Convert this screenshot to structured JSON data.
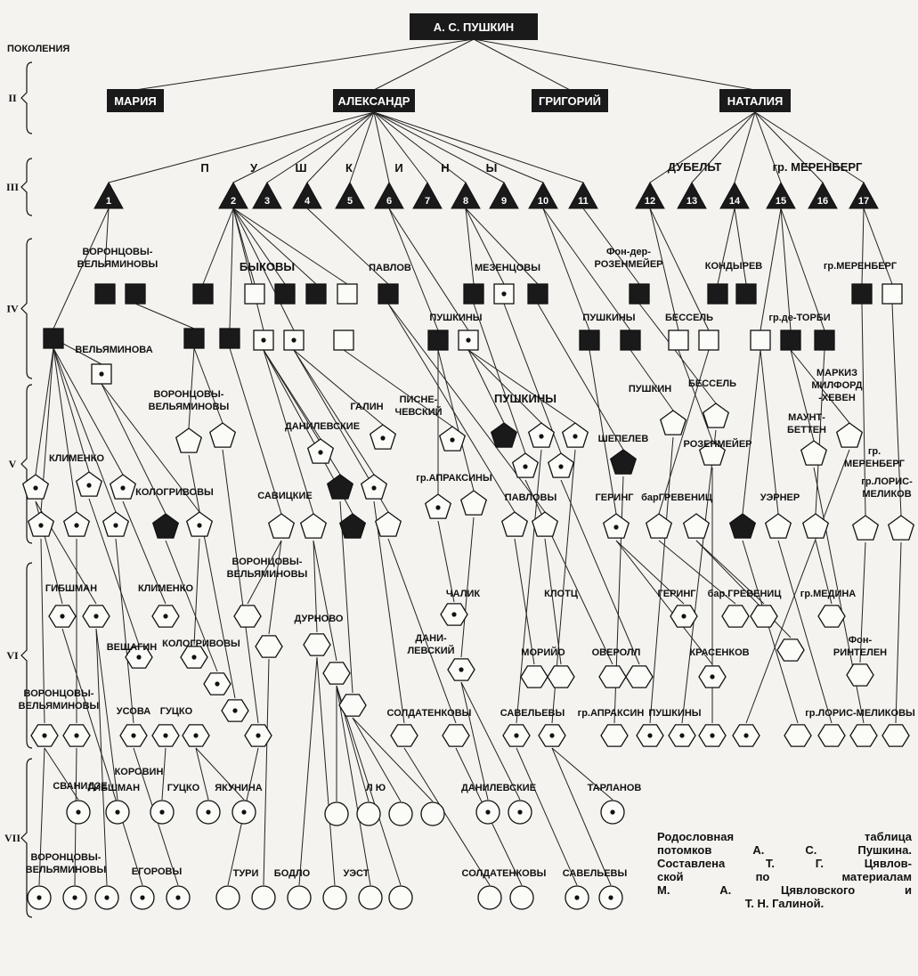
{
  "diagram": {
    "root_label": "А. С. ПУШКИН",
    "generations_label": "ПОКОЛЕНИЯ",
    "generation_numbers": [
      "II",
      "III",
      "IV",
      "V",
      "VI",
      "VII"
    ],
    "children": [
      "МАРИЯ",
      "АЛЕКСАНДР",
      "ГРИГОРИЙ",
      "НАТАЛИЯ"
    ],
    "gen3_numbers": [
      "1",
      "2",
      "3",
      "4",
      "5",
      "6",
      "7",
      "8",
      "9",
      "10",
      "11",
      "12",
      "13",
      "14",
      "15",
      "16",
      "17"
    ],
    "gen3_headers": {
      "pushkiny_letters": [
        "П",
        "У",
        "Ш",
        "К",
        "И",
        "Н",
        "Ы"
      ],
      "dubelt": "ДУБЕЛЬТ",
      "merenberg": "гр. МЕРЕНБЕРГ"
    },
    "gen4_labels": {
      "vorontsovy": "ВОРОНЦОВЫ-",
      "velyaminovy": "ВЕЛЬЯМИНОВЫ",
      "bykovy": "БЫКОВЫ",
      "pavlov": "ПАВЛОВ",
      "mezentsovy": "МЕЗЕНЦОВЫ",
      "fon_der": "Фон-дер-",
      "rozenmeier": "РОЗЕНМЕЙЕР",
      "kondyrev": "КОНДЫРЕВ",
      "merenberg": "гр.МЕРЕНБЕРГ",
      "pushkiny_a": "ПУШКИНЫ",
      "pushkiny_b": "ПУШКИНЫ",
      "bessel": "БЕССЕЛЬ",
      "de_torbi": "гр.де-ТОРБИ",
      "velyaminova": "ВЕЛЬЯМИНОВА"
    },
    "gen5_labels": {
      "vorontsovy": "ВОРОНЦОВЫ-",
      "velyaminovy": "ВЕЛЬЯМИНОВЫ",
      "galin": "ГАЛИН",
      "pisne": "ПИСНЕ-",
      "chevsky": "ЧЕВСКИЙ",
      "pushkiny": "ПУШКИНЫ",
      "pushkin": "ПУШКИН",
      "bessel": "БЕССЕЛЬ",
      "markiz": "МАРКИЗ",
      "milford": "МИЛФОРД",
      "heven": "-ХЕВЕН",
      "danilevskie": "ДАНИЛЕВСКИЕ",
      "shepelev": "ШЕПЕЛЕВ",
      "maunt": "МАУНТ-",
      "betten": "БЕТТЕН",
      "rozenmeier": "РОЗЕНМЕЙЕР",
      "klimenko": "КЛИМЕНКО",
      "kologrivovy": "КОЛОГРИВОВЫ",
      "apraksiny": "гр.АПРАКСИНЫ",
      "savitskie": "САВИЦКИЕ",
      "pavlovy": "ПАВЛОВЫ",
      "gering": "ГЕРИНГ",
      "grevenits": "барГРЕВЕНИЦ",
      "uerner": "УЭРНЕР",
      "gr": "гр.",
      "merenberg": "МЕРЕНБЕРГ",
      "gr_loris": "гр.ЛОРИС-",
      "melikov": "МЕЛИКОВ"
    },
    "gen6_labels": {
      "vorontsovy": "ВОРОНЦОВЫ-",
      "velyaminovy": "ВЕЛЬЯМИНОВЫ",
      "gibshman": "ГИБШМАН",
      "klimenko": "КЛИМЕНКО",
      "durnovo": "ДУРНОВО",
      "chalik": "ЧАЛИК",
      "klotts": "КЛОТЦ",
      "gering": "ГЕРИНГ",
      "grevenits": "бар.ГРЕВЕНИЦ",
      "medina": "гр.МЕДИНА",
      "veshchagin": "ВЕЩАГИН",
      "kologrivovy": "КОЛОГРИВОВЫ",
      "dani": "ДАНИ-",
      "levsky": "ЛЕВСКИЙ",
      "moriyo": "МОРИЙО",
      "overoll": "ОВЕРОЛЛ",
      "krasenkov": "КРАСЕНКОВ",
      "fon": "Фон-",
      "rintelen": "РИНТЕЛЕН",
      "vorontsovy2": "ВОРОНЦОВЫ-",
      "velyaminovy2": "ВЕЛЬЯМИНОВЫ",
      "usova": "УСОВА",
      "gutsko": "ГУЦКО",
      "soldatenkovy": "СОЛДАТЕНКОВЫ",
      "savelyevy": "САВЕЛЬЕВЫ",
      "apraksin": "гр.АПРАКСИН",
      "pushkiny": "ПУШКИНЫ",
      "loris": "гр.ЛОРИС-МЕЛИКОВЫ"
    },
    "gen7_labels": {
      "svanidze": "СВАНИДЗЕ",
      "korovin": "КОРОВИН",
      "gibshman": "ГИБШМАН",
      "gutsko": "ГУЦКО",
      "yakunina": "ЯКУНИНА",
      "lyu": "Л Ю",
      "danilevskie": "ДАНИЛЕВСКИЕ",
      "tarlanov": "ТАРЛАНОВ",
      "vorontsovy": "ВОРОНЦОВЫ-",
      "velyaminovy": "ВЕЛЬЯМИНОВЫ",
      "egorovy": "ЕГОРОВЫ",
      "turi": "ТУРИ",
      "bodlo": "БОДЛО",
      "uest": "УЭСТ",
      "soldatenkovy": "СОЛДАТЕНКОВЫ",
      "savelyevy": "САВЕЛЬЕВЫ"
    }
  },
  "caption": {
    "lines": [
      "Родословная таблица",
      "потомков А. С. Пушкина.",
      "Составлена Т. Г. Цявлов-",
      "ской по материалам",
      "М. А. Цявловского и",
      "Т. Н. Галиной."
    ]
  }
}
